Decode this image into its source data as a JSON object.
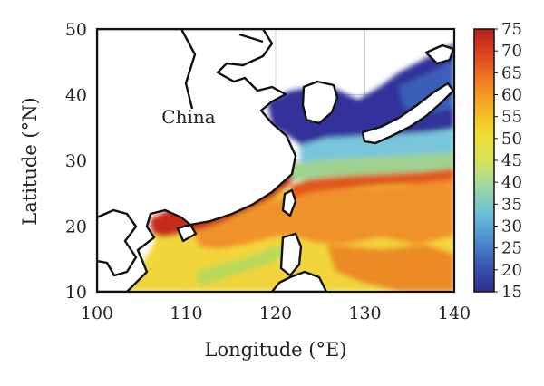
{
  "map": {
    "region_label": "China",
    "x_axis": {
      "label": "Longitude (°E)",
      "range": [
        100,
        140
      ],
      "ticks": [
        "100",
        "110",
        "120",
        "130",
        "140"
      ]
    },
    "y_axis": {
      "label": "Latitude (°N)",
      "range": [
        10,
        50
      ],
      "ticks": [
        "10",
        "20",
        "30",
        "40",
        "50"
      ]
    },
    "grid": true,
    "colorbar": {
      "range": [
        15,
        75
      ],
      "ticks": [
        "15",
        "20",
        "25",
        "30",
        "35",
        "40",
        "45",
        "50",
        "55",
        "60",
        "65",
        "70",
        "75"
      ],
      "colors": [
        "#2e2d8f",
        "#3a56b0",
        "#4d8fcf",
        "#6cc0d6",
        "#9fd7a2",
        "#d6e35a",
        "#f3dc33",
        "#f6b224",
        "#ef7f22",
        "#e0461f",
        "#b81d1d"
      ]
    }
  }
}
